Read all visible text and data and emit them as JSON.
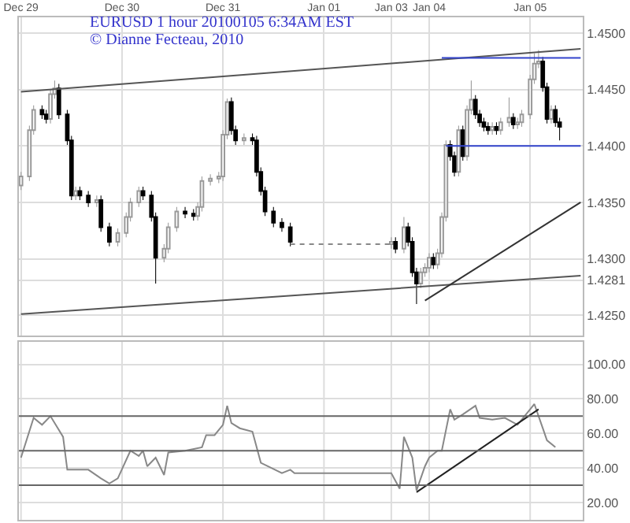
{
  "chart_data": [
    {
      "type": "candlestick",
      "title": "EURUSD 1 hour 20100105 6:34AM EST",
      "subtitle": "© Dianne Fecteau, 2010",
      "categories": [
        "Dec 29",
        null,
        null,
        null,
        null,
        null,
        null,
        null,
        null,
        null,
        null,
        null,
        null,
        null,
        null,
        null,
        null,
        null,
        null,
        null,
        null,
        null,
        null,
        null,
        "Dec 30",
        null,
        null,
        null,
        null,
        null,
        null,
        null,
        null,
        null,
        null,
        null,
        null,
        null,
        null,
        null,
        null,
        null,
        null,
        null,
        null,
        null,
        null,
        null,
        "Dec 31",
        null,
        null,
        null,
        null,
        null,
        null,
        null,
        null,
        null,
        null,
        null,
        null,
        null,
        null,
        null,
        null,
        null,
        null,
        null,
        null,
        null,
        null,
        null,
        "Jan 01",
        null,
        null,
        null,
        null,
        null,
        null,
        null,
        null,
        null,
        null,
        null,
        null,
        null,
        null,
        null,
        "Jan 03",
        null,
        null,
        null,
        null,
        null,
        null,
        null,
        null,
        "Jan 04",
        null,
        null,
        null,
        null,
        null,
        null,
        null,
        null,
        null,
        null,
        null,
        null,
        null,
        null,
        null,
        null,
        null,
        null,
        null,
        null,
        null,
        null,
        null,
        "Jan 05",
        null,
        null,
        null,
        null,
        null,
        null,
        null,
        null,
        null,
        null,
        null,
        null
      ],
      "ohlc": [
        [
          1.4365,
          1.4377,
          1.4361,
          1.4373
        ],
        null,
        [
          1.4373,
          1.4418,
          1.4369,
          1.4414
        ],
        [
          1.4414,
          1.4436,
          1.441,
          1.4432
        ],
        null,
        [
          1.4432,
          1.4436,
          1.4424,
          1.4428
        ],
        [
          1.4428,
          1.4432,
          1.442,
          1.4424
        ],
        [
          1.4424,
          1.445,
          1.442,
          1.4446
        ],
        [
          1.4446,
          1.4458,
          1.4442,
          1.4451
        ],
        [
          1.4451,
          1.4455,
          1.4424,
          1.4428
        ],
        null,
        [
          1.4428,
          1.4432,
          1.4401,
          1.4405
        ],
        [
          1.4405,
          1.4409,
          1.4352,
          1.4356
        ],
        [
          1.4356,
          1.4364,
          1.4352,
          1.436
        ],
        [
          1.436,
          1.4364,
          1.4352,
          1.4356
        ],
        null,
        [
          1.4356,
          1.436,
          1.4346,
          1.435
        ],
        null,
        [
          1.435,
          1.4356,
          1.4346,
          1.4352
        ],
        [
          1.4352,
          1.4356,
          1.4324,
          1.4328
        ],
        null,
        [
          1.4328,
          1.4332,
          1.4311,
          1.4315
        ],
        null,
        [
          1.4315,
          1.4327,
          1.4311,
          1.4323
        ],
        null,
        [
          1.4323,
          1.4341,
          1.4319,
          1.4337
        ],
        [
          1.4337,
          1.4354,
          1.4333,
          1.435
        ],
        null,
        [
          1.435,
          1.4364,
          1.4346,
          1.436
        ],
        [
          1.436,
          1.4364,
          1.4352,
          1.4356
        ],
        null,
        [
          1.4356,
          1.436,
          1.4333,
          1.4337
        ],
        [
          1.4337,
          1.4341,
          1.4278,
          1.4301
        ],
        null,
        [
          1.4301,
          1.4313,
          1.4297,
          1.4309
        ],
        [
          1.4309,
          1.4332,
          1.4305,
          1.4328
        ],
        null,
        [
          1.4328,
          1.4346,
          1.4324,
          1.4342
        ],
        null,
        [
          1.4342,
          1.4346,
          1.4336,
          1.434
        ],
        null,
        [
          1.434,
          1.4344,
          1.4334,
          1.4338
        ],
        [
          1.4338,
          1.435,
          1.4334,
          1.4346
        ],
        [
          1.4346,
          1.4373,
          1.4342,
          1.4369
        ],
        null,
        [
          1.4369,
          1.4375,
          1.4365,
          1.4371
        ],
        null,
        [
          1.4371,
          1.4377,
          1.4367,
          1.4373
        ],
        [
          1.4373,
          1.4414,
          1.4369,
          1.441
        ],
        [
          1.441,
          1.4442,
          1.4406,
          1.4439
        ],
        [
          1.4439,
          1.4443,
          1.441,
          1.4414
        ],
        [
          1.4414,
          1.4418,
          1.4401,
          1.4405
        ],
        null,
        [
          1.4405,
          1.4411,
          1.4401,
          1.4407
        ],
        null,
        [
          1.4407,
          1.4411,
          1.4401,
          1.4405
        ],
        [
          1.4405,
          1.4409,
          1.4373,
          1.4377
        ],
        [
          1.4377,
          1.4381,
          1.4356,
          1.436
        ],
        [
          1.436,
          1.4364,
          1.4338,
          1.4342
        ],
        null,
        [
          1.4342,
          1.4346,
          1.4328,
          1.4332
        ],
        null,
        [
          1.4332,
          1.4336,
          1.4324,
          1.4328
        ],
        null,
        [
          1.4328,
          1.4332,
          1.4311,
          1.4315
        ],
        null,
        null,
        null,
        null,
        null,
        null,
        null,
        null,
        null,
        null,
        null,
        null,
        null,
        null,
        null,
        null,
        null,
        null,
        null,
        null,
        null,
        null,
        null,
        [
          1.4313,
          1.4319,
          1.4309,
          1.4315
        ],
        [
          1.4315,
          1.4319,
          1.4305,
          1.4309
        ],
        null,
        [
          1.4309,
          1.4337,
          1.4305,
          1.4328
        ],
        [
          1.4328,
          1.4332,
          1.4311,
          1.4315
        ],
        [
          1.4315,
          1.4319,
          1.4284,
          1.4288
        ],
        [
          1.4288,
          1.4292,
          1.426,
          1.4278
        ],
        [
          1.4278,
          1.4292,
          1.4274,
          1.4288
        ],
        [
          1.4288,
          1.4296,
          1.4284,
          1.4292
        ],
        [
          1.4292,
          1.4305,
          1.4288,
          1.4301
        ],
        [
          1.4301,
          1.4305,
          1.4291,
          1.4295
        ],
        [
          1.4295,
          1.4309,
          1.4291,
          1.4305
        ],
        [
          1.4305,
          1.4341,
          1.4301,
          1.4337
        ],
        [
          1.4337,
          1.4405,
          1.4333,
          1.4401
        ],
        [
          1.4401,
          1.4405,
          1.4387,
          1.4391
        ],
        [
          1.4391,
          1.4395,
          1.4373,
          1.4377
        ],
        [
          1.4377,
          1.4418,
          1.4373,
          1.4414
        ],
        [
          1.4414,
          1.4418,
          1.4387,
          1.4391
        ],
        [
          1.4391,
          1.4436,
          1.4387,
          1.4432
        ],
        [
          1.4432,
          1.4458,
          1.4428,
          1.4441
        ],
        [
          1.4441,
          1.4445,
          1.4424,
          1.4428
        ],
        [
          1.4428,
          1.4432,
          1.4417,
          1.4421
        ],
        [
          1.4421,
          1.4425,
          1.4413,
          1.4417
        ],
        [
          1.4417,
          1.4421,
          1.441,
          1.4414
        ],
        [
          1.4414,
          1.4421,
          1.441,
          1.4417
        ],
        [
          1.4417,
          1.4421,
          1.441,
          1.4414
        ],
        [
          1.4414,
          1.4425,
          1.441,
          1.4421
        ],
        null,
        [
          1.4421,
          1.4443,
          1.4417,
          1.4425
        ],
        [
          1.4425,
          1.4429,
          1.4415,
          1.4419
        ],
        [
          1.4419,
          1.4425,
          1.4415,
          1.4421
        ],
        [
          1.4421,
          1.4432,
          1.4417,
          1.4428
        ],
        null,
        [
          1.4428,
          1.4463,
          1.4424,
          1.4459
        ],
        [
          1.4459,
          1.4482,
          1.4455,
          1.4473
        ],
        [
          1.4473,
          1.4485,
          1.4469,
          1.4475
        ],
        [
          1.4475,
          1.4479,
          1.4448,
          1.4452
        ],
        [
          1.4452,
          1.4456,
          1.442,
          1.4424
        ],
        [
          1.4424,
          1.4436,
          1.442,
          1.4432
        ],
        [
          1.4432,
          1.4436,
          1.4417,
          1.4421
        ],
        [
          1.4421,
          1.4425,
          1.4405,
          1.4417
        ],
        null,
        null,
        null,
        null,
        null
      ],
      "series": [
        {
          "type": "line",
          "values": [
            1.4448,
            null,
            null,
            null,
            null,
            null,
            null,
            null,
            null,
            null,
            null,
            null,
            null,
            null,
            null,
            null,
            null,
            null,
            null,
            null,
            null,
            null,
            null,
            null,
            null,
            null,
            null,
            null,
            null,
            null,
            null,
            null,
            null,
            null,
            null,
            null,
            null,
            null,
            null,
            null,
            null,
            null,
            null,
            null,
            null,
            null,
            null,
            null,
            null,
            null,
            null,
            null,
            null,
            null,
            null,
            null,
            null,
            null,
            null,
            null,
            null,
            null,
            null,
            null,
            null,
            null,
            null,
            null,
            null,
            null,
            null,
            null,
            null,
            null,
            null,
            null,
            null,
            null,
            null,
            null,
            null,
            null,
            null,
            null,
            null,
            null,
            null,
            null,
            null,
            null,
            null,
            null,
            null,
            null,
            null,
            null,
            null,
            null,
            null,
            null,
            null,
            null,
            null,
            null,
            null,
            null,
            null,
            null,
            null,
            null,
            null,
            null,
            null,
            null,
            null,
            null,
            null,
            null,
            null,
            null,
            null,
            null,
            null,
            null,
            null,
            null,
            null,
            null,
            null,
            null,
            null,
            null,
            null,
            1.4486
          ],
          "color": "#555555"
        },
        {
          "type": "line",
          "values": [
            1.4251,
            null,
            null,
            null,
            null,
            null,
            null,
            null,
            null,
            null,
            null,
            null,
            null,
            null,
            null,
            null,
            null,
            null,
            null,
            null,
            null,
            null,
            null,
            null,
            null,
            null,
            null,
            null,
            null,
            null,
            null,
            null,
            null,
            null,
            null,
            null,
            null,
            null,
            null,
            null,
            null,
            null,
            null,
            null,
            null,
            null,
            null,
            null,
            null,
            null,
            null,
            null,
            null,
            null,
            null,
            null,
            null,
            null,
            null,
            null,
            null,
            null,
            null,
            null,
            null,
            null,
            null,
            null,
            null,
            null,
            null,
            null,
            null,
            null,
            null,
            null,
            null,
            null,
            null,
            null,
            null,
            null,
            null,
            null,
            null,
            null,
            null,
            null,
            null,
            null,
            null,
            null,
            null,
            null,
            null,
            null,
            null,
            null,
            null,
            null,
            null,
            null,
            null,
            null,
            null,
            null,
            null,
            null,
            null,
            null,
            null,
            null,
            null,
            null,
            null,
            null,
            null,
            null,
            null,
            null,
            null,
            null,
            null,
            null,
            null,
            null,
            null,
            null,
            null,
            null,
            null,
            null,
            null,
            1.4285
          ],
          "color": "#555555"
        },
        {
          "type": "line",
          "values": [
            null,
            null,
            null,
            null,
            null,
            null,
            null,
            null,
            null,
            null,
            null,
            null,
            null,
            null,
            null,
            null,
            null,
            null,
            null,
            null,
            null,
            null,
            null,
            null,
            null,
            null,
            null,
            null,
            null,
            null,
            null,
            null,
            null,
            null,
            null,
            null,
            null,
            null,
            null,
            null,
            null,
            null,
            null,
            null,
            null,
            null,
            null,
            null,
            null,
            null,
            null,
            null,
            null,
            null,
            null,
            null,
            null,
            null,
            null,
            null,
            null,
            null,
            null,
            null,
            null,
            null,
            null,
            null,
            null,
            null,
            null,
            null,
            null,
            null,
            null,
            null,
            null,
            null,
            null,
            null,
            null,
            null,
            null,
            null,
            null,
            null,
            null,
            null,
            null,
            null,
            null,
            null,
            null,
            null,
            null,
            null,
            1.4263,
            null,
            null,
            null,
            null,
            null,
            null,
            null,
            null,
            null,
            null,
            null,
            null,
            null,
            null,
            null,
            null,
            null,
            null,
            null,
            null,
            null,
            null,
            null,
            null,
            null,
            null,
            null,
            null,
            null,
            null,
            null,
            null,
            null,
            null,
            null,
            null,
            1.435
          ],
          "color": "#333333"
        },
        {
          "type": "line",
          "values": [
            null,
            null,
            null,
            null,
            null,
            null,
            null,
            null,
            null,
            null,
            null,
            null,
            null,
            null,
            null,
            null,
            null,
            null,
            null,
            null,
            null,
            null,
            null,
            null,
            null,
            null,
            null,
            null,
            null,
            null,
            null,
            null,
            null,
            null,
            null,
            null,
            null,
            null,
            null,
            null,
            null,
            null,
            null,
            null,
            null,
            null,
            null,
            null,
            null,
            null,
            null,
            null,
            null,
            null,
            null,
            null,
            null,
            null,
            null,
            null,
            null,
            null,
            null,
            null,
            null,
            null,
            null,
            null,
            null,
            null,
            null,
            null,
            null,
            null,
            null,
            null,
            null,
            null,
            null,
            null,
            null,
            null,
            null,
            null,
            null,
            null,
            null,
            null,
            null,
            null,
            null,
            null,
            null,
            null,
            null,
            null,
            null,
            null,
            null,
            null,
            1.4478,
            null,
            null,
            null,
            null,
            null,
            null,
            null,
            null,
            null,
            null,
            null,
            null,
            null,
            null,
            null,
            null,
            null,
            null,
            null,
            null,
            null,
            null,
            null,
            null,
            null,
            null,
            null,
            null,
            null,
            null,
            null,
            null,
            1.4478
          ],
          "color": "#3344cc"
        },
        {
          "type": "line",
          "values": [
            null,
            null,
            null,
            null,
            null,
            null,
            null,
            null,
            null,
            null,
            null,
            null,
            null,
            null,
            null,
            null,
            null,
            null,
            null,
            null,
            null,
            null,
            null,
            null,
            null,
            null,
            null,
            null,
            null,
            null,
            null,
            null,
            null,
            null,
            null,
            null,
            null,
            null,
            null,
            null,
            null,
            null,
            null,
            null,
            null,
            null,
            null,
            null,
            null,
            null,
            null,
            null,
            null,
            null,
            null,
            null,
            null,
            null,
            null,
            null,
            null,
            null,
            null,
            null,
            null,
            null,
            null,
            null,
            null,
            null,
            null,
            null,
            null,
            null,
            null,
            null,
            null,
            null,
            null,
            null,
            null,
            null,
            null,
            null,
            null,
            null,
            null,
            null,
            null,
            null,
            null,
            null,
            null,
            null,
            null,
            null,
            null,
            null,
            null,
            null,
            null,
            1.44,
            null,
            null,
            null,
            null,
            null,
            null,
            null,
            null,
            null,
            null,
            null,
            null,
            null,
            null,
            null,
            null,
            null,
            null,
            null,
            null,
            null,
            null,
            null,
            null,
            null,
            null,
            null,
            null,
            null,
            null,
            null,
            1.44
          ],
          "color": "#3344cc"
        },
        {
          "type": "line",
          "values": [
            null,
            null,
            null,
            null,
            null,
            null,
            null,
            null,
            null,
            null,
            null,
            null,
            null,
            null,
            null,
            null,
            null,
            null,
            null,
            null,
            null,
            null,
            null,
            null,
            null,
            null,
            null,
            null,
            null,
            null,
            null,
            null,
            null,
            null,
            null,
            null,
            null,
            null,
            null,
            null,
            null,
            null,
            null,
            null,
            null,
            null,
            null,
            null,
            null,
            null,
            null,
            null,
            null,
            null,
            null,
            null,
            null,
            null,
            null,
            null,
            null,
            null,
            null,
            null,
            1.4313,
            null,
            null,
            null,
            null,
            null,
            null,
            null,
            null,
            null,
            null,
            null,
            null,
            null,
            null,
            null,
            null,
            null,
            null,
            null,
            null,
            null,
            null,
            null,
            1.4313,
            null,
            null,
            null,
            null,
            null,
            null,
            null,
            null,
            null,
            null,
            null,
            null,
            null,
            null,
            null,
            null,
            null,
            null,
            null,
            null,
            null,
            null,
            null,
            null,
            null,
            null,
            null,
            null,
            null,
            null,
            null,
            null,
            null,
            null,
            null,
            null,
            null,
            null,
            null,
            null,
            null,
            null,
            null,
            null,
            null
          ],
          "color": "#888888",
          "line_style": "dotted"
        }
      ],
      "ylim": [
        1.4232,
        1.4514
      ],
      "yticks": [
        {
          "value": 1.425,
          "label": "1.4250"
        },
        1.4281,
        {
          "value": 1.43,
          "label": "1.4300"
        },
        {
          "value": 1.435,
          "label": "1.4350"
        },
        {
          "value": 1.44,
          "label": "1.4400"
        },
        {
          "value": 1.445,
          "label": "1.4450"
        },
        {
          "value": 1.45,
          "label": "1.4500"
        }
      ],
      "grid": true
    },
    {
      "type": "line",
      "categories": [
        null,
        null,
        null,
        null,
        null,
        null,
        null,
        null,
        null,
        null,
        null,
        null,
        null,
        null,
        null,
        null,
        null,
        null,
        null,
        null,
        null,
        null,
        null,
        null,
        null,
        null,
        null,
        null,
        null,
        null,
        null,
        null,
        null,
        null,
        null,
        null,
        null,
        null,
        null,
        null,
        null,
        null,
        null,
        null,
        null,
        null,
        null,
        null,
        null,
        null,
        null,
        null,
        null,
        null,
        null,
        null,
        null,
        null,
        null,
        null,
        null,
        null,
        null,
        null,
        null,
        null,
        null,
        null,
        null,
        null,
        null,
        null,
        null,
        null,
        null,
        null,
        null,
        null,
        null,
        null,
        null,
        null,
        null,
        null,
        null,
        null,
        null,
        null,
        null,
        null,
        null,
        null,
        null,
        null,
        null,
        null,
        null,
        null,
        null,
        null,
        null,
        null,
        null,
        null,
        null,
        null,
        null,
        null,
        null,
        null,
        null,
        null,
        null,
        null,
        null,
        null,
        null,
        null,
        null,
        null,
        null,
        null,
        null,
        null,
        null,
        null,
        null,
        null,
        null,
        null,
        null,
        null,
        null,
        null
      ],
      "series": [
        {
          "values": [
            46,
            null,
            null,
            69,
            null,
            65,
            null,
            70,
            null,
            null,
            58,
            39,
            null,
            null,
            39,
            null,
            39,
            null,
            null,
            34,
            null,
            31,
            null,
            34,
            null,
            null,
            50,
            null,
            47,
            50,
            41,
            null,
            46,
            null,
            36,
            49,
            null,
            null,
            null,
            50,
            null,
            null,
            null,
            52,
            59,
            null,
            59,
            null,
            65,
            76,
            66,
            null,
            63,
            null,
            null,
            61,
            null,
            43,
            null,
            null,
            null,
            null,
            37,
            null,
            39,
            37,
            null,
            null,
            null,
            null,
            null,
            null,
            null,
            null,
            null,
            null,
            null,
            null,
            null,
            null,
            null,
            null,
            null,
            null,
            null,
            null,
            null,
            null,
            37,
            null,
            28,
            58,
            null,
            46,
            27,
            null,
            41,
            46,
            null,
            50,
            50,
            null,
            74,
            68,
            null,
            71,
            null,
            null,
            76,
            69,
            null,
            null,
            68,
            null,
            null,
            69,
            null,
            null,
            65,
            null,
            null,
            74,
            77,
            null,
            63,
            56,
            null,
            52,
            null,
            null,
            null,
            null,
            null,
            null
          ],
          "color": "#888888"
        },
        {
          "type": "line",
          "values": [
            null,
            null,
            null,
            null,
            null,
            null,
            null,
            null,
            null,
            null,
            null,
            null,
            null,
            null,
            null,
            null,
            null,
            null,
            null,
            null,
            null,
            null,
            null,
            null,
            null,
            null,
            null,
            null,
            null,
            null,
            null,
            null,
            null,
            null,
            null,
            null,
            null,
            null,
            null,
            null,
            null,
            null,
            null,
            null,
            null,
            null,
            null,
            null,
            null,
            null,
            null,
            null,
            null,
            null,
            null,
            null,
            null,
            null,
            null,
            null,
            null,
            null,
            null,
            null,
            null,
            null,
            null,
            null,
            null,
            null,
            null,
            null,
            null,
            null,
            null,
            null,
            null,
            null,
            null,
            null,
            null,
            null,
            null,
            null,
            null,
            null,
            null,
            null,
            null,
            null,
            null,
            null,
            null,
            null,
            26,
            null,
            null,
            null,
            null,
            null,
            null,
            null,
            null,
            null,
            null,
            null,
            null,
            null,
            null,
            null,
            null,
            null,
            null,
            null,
            null,
            null,
            null,
            null,
            null,
            null,
            null,
            null,
            null,
            74,
            null,
            null,
            null,
            null,
            null,
            null,
            null,
            null,
            null,
            null
          ],
          "color": "#222222"
        }
      ],
      "ylim": [
        10,
        113
      ],
      "yticks": [
        {
          "value": 20,
          "label": "20.00"
        },
        {
          "value": 40,
          "label": "40.00"
        },
        {
          "value": 60,
          "label": "60.00"
        },
        {
          "value": 80,
          "label": "80.00"
        },
        {
          "value": 100,
          "label": "100.00"
        }
      ],
      "ref_lines": [
        {
          "axis": "y",
          "value": 30,
          "color": "#666666"
        },
        {
          "axis": "y",
          "value": 50,
          "color": "#666666"
        },
        {
          "axis": "y",
          "value": 70,
          "color": "#666666"
        }
      ],
      "tick_labels": "y",
      "grid": true
    }
  ]
}
